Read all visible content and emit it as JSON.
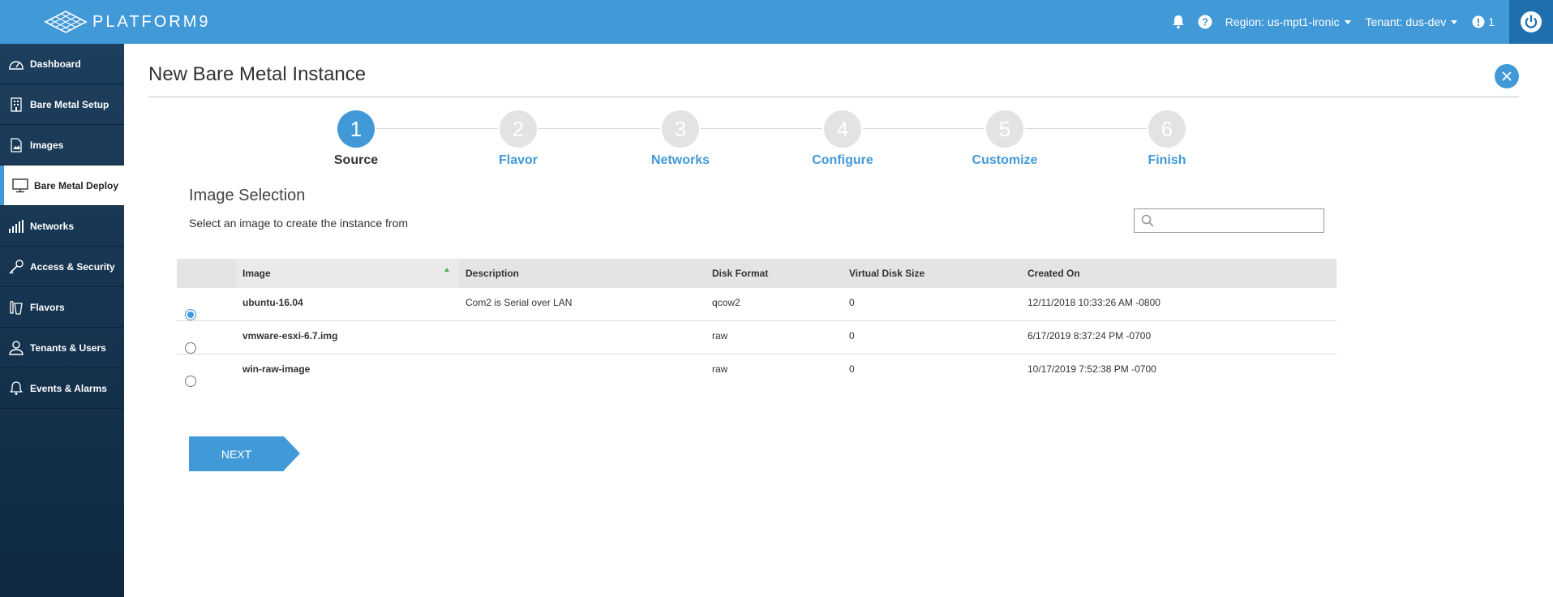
{
  "brand": {
    "name": "PLATFORM9"
  },
  "topbar": {
    "region_label": "Region: us-mpt1-ironic",
    "tenant_label": "Tenant: dus-dev",
    "alert_count": "1"
  },
  "sidebar": {
    "items": [
      {
        "label": "Dashboard",
        "icon": "gauge-icon"
      },
      {
        "label": "Bare Metal Setup",
        "icon": "building-icon"
      },
      {
        "label": "Images",
        "icon": "image-file-icon"
      },
      {
        "label": "Bare Metal Deploy",
        "icon": "monitor-icon",
        "active": true
      },
      {
        "label": "Networks",
        "icon": "signal-bars-icon"
      },
      {
        "label": "Access & Security",
        "icon": "key-icon"
      },
      {
        "label": "Flavors",
        "icon": "flavors-icon"
      },
      {
        "label": "Tenants & Users",
        "icon": "user-icon"
      },
      {
        "label": "Events & Alarms",
        "icon": "bell-icon"
      }
    ]
  },
  "page": {
    "title": "New Bare Metal Instance"
  },
  "wizard": {
    "steps": [
      {
        "number": "1",
        "label": "Source",
        "active": true
      },
      {
        "number": "2",
        "label": "Flavor"
      },
      {
        "number": "3",
        "label": "Networks"
      },
      {
        "number": "4",
        "label": "Configure"
      },
      {
        "number": "5",
        "label": "Customize"
      },
      {
        "number": "6",
        "label": "Finish"
      }
    ]
  },
  "section": {
    "title": "Image Selection",
    "subtitle": "Select an image to create the instance from",
    "search_placeholder": ""
  },
  "table": {
    "columns": [
      "Image",
      "Description",
      "Disk Format",
      "Virtual Disk Size",
      "Created On"
    ],
    "sorted_column": "Image",
    "rows": [
      {
        "selected": true,
        "image": "ubuntu-16.04",
        "description": "Com2 is Serial over LAN",
        "disk_format": "qcow2",
        "size": "0",
        "created": "12/11/2018 10:33:26 AM -0800"
      },
      {
        "selected": false,
        "image": "vmware-esxi-6.7.img",
        "description": "",
        "disk_format": "raw",
        "size": "0",
        "created": "6/17/2019 8:37:24 PM -0700"
      },
      {
        "selected": false,
        "image": "win-raw-image",
        "description": "",
        "disk_format": "raw",
        "size": "0",
        "created": "10/17/2019 7:52:38 PM -0700"
      }
    ]
  },
  "actions": {
    "next_label": "NEXT"
  },
  "colors": {
    "primary": "#4299d8",
    "sidebar": "#1d3e5d",
    "step_inactive": "#e3e3e3"
  }
}
